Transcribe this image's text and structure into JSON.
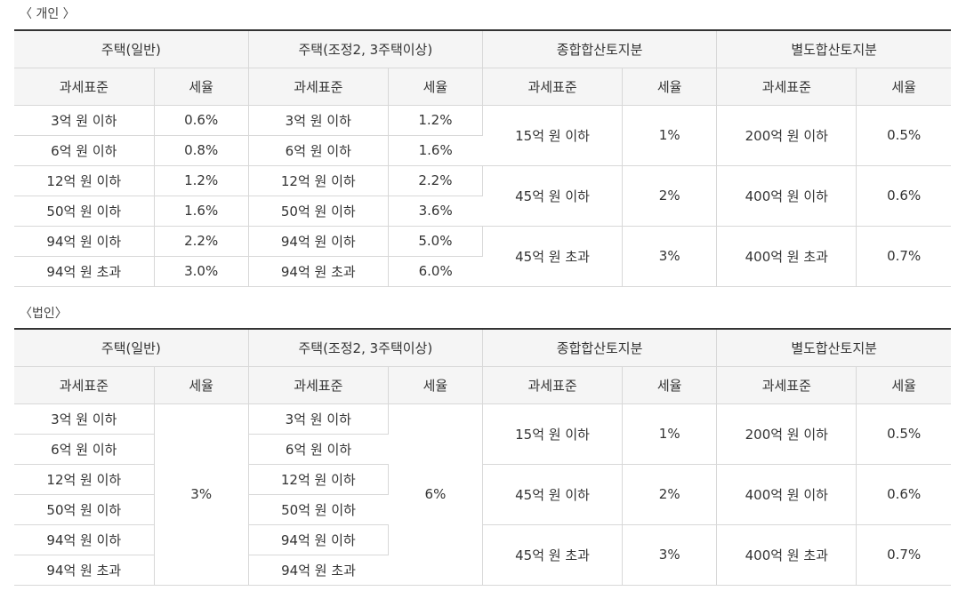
{
  "individual": {
    "title": "〈 개인 〉",
    "headers": {
      "groups": [
        "주택(일반)",
        "주택(조정2, 3주택이상)",
        "종합합산토지분",
        "별도합산토지분"
      ],
      "tax_base": "과세표준",
      "rate": "세율"
    },
    "housing_rows": [
      {
        "g_base": "3억 원 이하",
        "g_rate": "0.6%",
        "a_base": "3억 원 이하",
        "a_rate": "1.2%"
      },
      {
        "g_base": "6억 원 이하",
        "g_rate": "0.8%",
        "a_base": "6억 원 이하",
        "a_rate": "1.6%"
      },
      {
        "g_base": "12억 원 이하",
        "g_rate": "1.2%",
        "a_base": "12억 원 이하",
        "a_rate": "2.2%"
      },
      {
        "g_base": "50억 원 이하",
        "g_rate": "1.6%",
        "a_base": "50억 원 이하",
        "a_rate": "3.6%"
      },
      {
        "g_base": "94억 원 이하",
        "g_rate": "2.2%",
        "a_base": "94억 원 이하",
        "a_rate": "5.0%"
      },
      {
        "g_base": "94억 원 초과",
        "g_rate": "3.0%",
        "a_base": "94억 원 초과",
        "a_rate": "6.0%"
      }
    ],
    "land_rows": [
      {
        "c_base": "15억 원 이하",
        "c_rate": "1%",
        "s_base": "200억 원 이하",
        "s_rate": "0.5%"
      },
      {
        "c_base": "45억 원 이하",
        "c_rate": "2%",
        "s_base": "400억 원 이하",
        "s_rate": "0.6%"
      },
      {
        "c_base": "45억 원 초과",
        "c_rate": "3%",
        "s_base": "400억 원 초과",
        "s_rate": "0.7%"
      }
    ]
  },
  "corporate": {
    "title": "〈법인〉",
    "headers": {
      "groups": [
        "주택(일반)",
        "주택(조정2, 3주택이상)",
        "종합합산토지분",
        "별도합산토지분"
      ],
      "tax_base": "과세표준",
      "rate": "세율"
    },
    "housing_general_rate": "3%",
    "housing_adjusted_rate": "6%",
    "housing_bases": [
      {
        "g_base": "3억 원 이하",
        "a_base": "3억 원 이하"
      },
      {
        "g_base": "6억 원 이하",
        "a_base": "6억 원 이하"
      },
      {
        "g_base": "12억 원 이하",
        "a_base": "12억 원 이하"
      },
      {
        "g_base": "50억 원 이하",
        "a_base": "50억 원 이하"
      },
      {
        "g_base": "94억 원 이하",
        "a_base": "94억 원 이하"
      },
      {
        "g_base": "94억 원 초과",
        "a_base": "94억 원 초과"
      }
    ],
    "land_rows": [
      {
        "c_base": "15억 원 이하",
        "c_rate": "1%",
        "s_base": "200억 원 이하",
        "s_rate": "0.5%"
      },
      {
        "c_base": "45억 원 이하",
        "c_rate": "2%",
        "s_base": "400억 원 이하",
        "s_rate": "0.6%"
      },
      {
        "c_base": "45억 원 초과",
        "c_rate": "3%",
        "s_base": "400억 원 초과",
        "s_rate": "0.7%"
      }
    ]
  }
}
